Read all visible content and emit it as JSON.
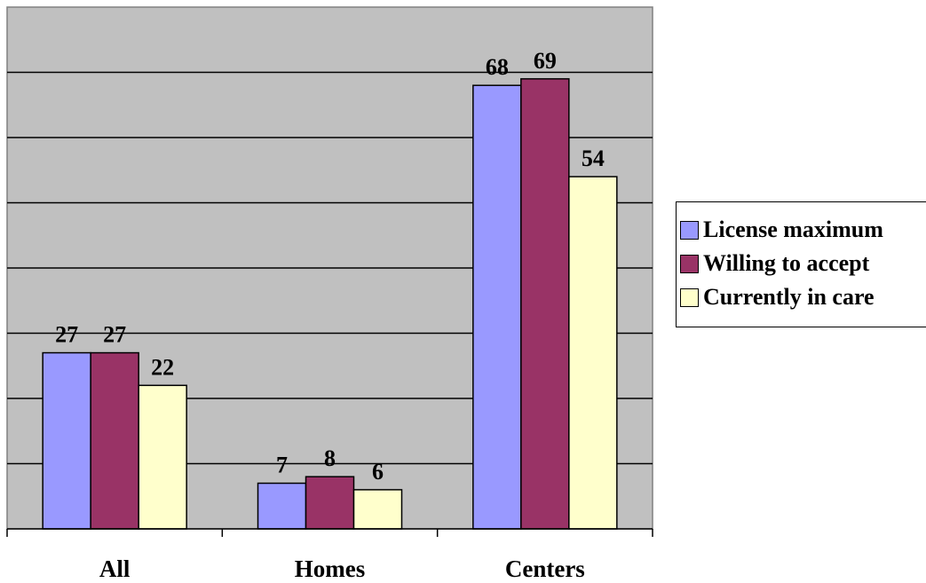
{
  "chart_data": {
    "type": "bar",
    "categories": [
      "All",
      "Homes",
      "Centers"
    ],
    "series": [
      {
        "name": "License maximum",
        "color": "#9999ff",
        "values": [
          27,
          7,
          68
        ]
      },
      {
        "name": "Willing to accept",
        "color": "#993366",
        "values": [
          27,
          8,
          69
        ]
      },
      {
        "name": "Currently in care",
        "color": "#ffffcc",
        "values": [
          22,
          6,
          54
        ]
      }
    ],
    "ylim": [
      0,
      80
    ],
    "grid": true,
    "legend_position": "right",
    "plot_background": "#c0c0c0",
    "data_labels": true
  },
  "legend": {
    "items": [
      {
        "label": "License maximum",
        "color": "#9999ff"
      },
      {
        "label": "Willing to accept",
        "color": "#993366"
      },
      {
        "label": "Currently in care",
        "color": "#ffffcc"
      }
    ]
  }
}
